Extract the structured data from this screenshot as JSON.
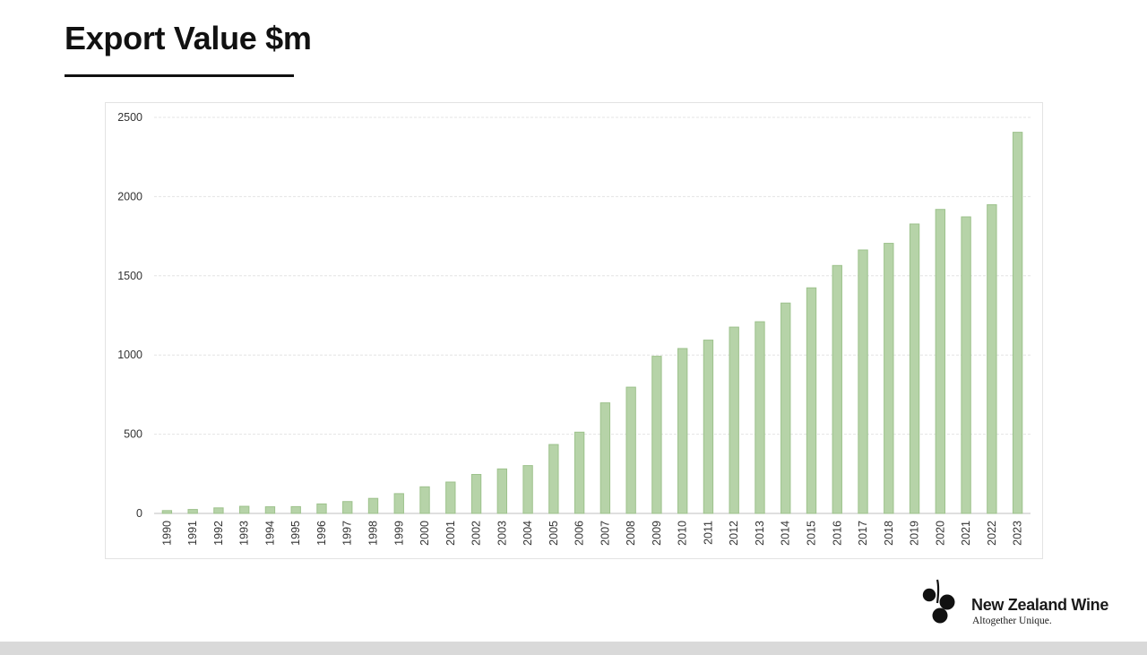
{
  "page": {
    "title": "Export Value $m"
  },
  "brand": {
    "name": "New Zealand Wine",
    "tagline": "Altogether Unique.",
    "logo_icon": "grape-cluster-icon"
  },
  "colors": {
    "bar_fill": "#b6d3a8",
    "bar_stroke": "#9dc28c"
  },
  "chart_data": {
    "type": "bar",
    "title": "Export Value $m",
    "xlabel": "",
    "ylabel": "",
    "ylim": [
      0,
      2500
    ],
    "yticks": [
      0,
      500,
      1000,
      1500,
      2000,
      2500
    ],
    "grid": true,
    "legend": "none",
    "categories": [
      "1990",
      "1991",
      "1992",
      "1993",
      "1994",
      "1995",
      "1996",
      "1997",
      "1998",
      "1999",
      "2000",
      "2001",
      "2002",
      "2003",
      "2004",
      "2005",
      "2006",
      "2007",
      "2008",
      "2009",
      "2010",
      "2011",
      "2012",
      "2013",
      "2014",
      "2015",
      "2016",
      "2017",
      "2018",
      "2019",
      "2020",
      "2021",
      "2022",
      "2023"
    ],
    "values": [
      18,
      25,
      35,
      45,
      42,
      43,
      60,
      75,
      95,
      125,
      168,
      198,
      246,
      281,
      302,
      435,
      513,
      698,
      797,
      992,
      1041,
      1094,
      1176,
      1210,
      1328,
      1424,
      1565,
      1663,
      1705,
      1827,
      1919,
      1872,
      1949,
      2406
    ]
  }
}
